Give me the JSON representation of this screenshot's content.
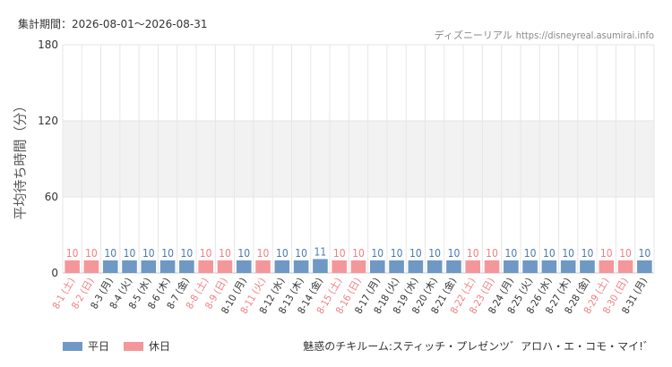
{
  "header": {
    "period_label": "集計期間：2026-08-01～2026-08-31",
    "site_name": "ディズニーリアル",
    "site_url": "https://disneyreal.asumirai.info"
  },
  "colors": {
    "weekday": "#6f98c4",
    "holiday": "#f4979b",
    "weekday_text": "#4a7ab0",
    "holiday_text": "#f07f85",
    "band": "#f2f2f2",
    "grid": "#e6e6e6"
  },
  "legend": {
    "weekday_label": "平日",
    "holiday_label": "休日"
  },
  "footer": {
    "attraction": "魅惑のチキルーム:スティッチ・プレゼンツ゛アロハ・エ・コモ・マイ!゛"
  },
  "chart_data": {
    "type": "bar",
    "ylabel": "平均待ち時間（分）",
    "ylim": [
      0,
      180
    ],
    "yticks": [
      0,
      60,
      120,
      180
    ],
    "shaded_band": [
      60,
      120
    ],
    "grid": true,
    "legend_position": "bottom-left",
    "categories": [
      "8-1 (土)",
      "8-2 (日)",
      "8-3 (月)",
      "8-4 (火)",
      "8-5 (水)",
      "8-6 (木)",
      "8-7 (金)",
      "8-8 (土)",
      "8-9 (日)",
      "8-10 (月)",
      "8-11 (火)",
      "8-12 (水)",
      "8-13 (木)",
      "8-14 (金)",
      "8-15 (土)",
      "8-16 (日)",
      "8-17 (月)",
      "8-18 (火)",
      "8-19 (水)",
      "8-20 (木)",
      "8-21 (金)",
      "8-22 (土)",
      "8-23 (日)",
      "8-24 (月)",
      "8-25 (火)",
      "8-26 (水)",
      "8-27 (木)",
      "8-28 (金)",
      "8-29 (土)",
      "8-30 (日)",
      "8-31 (月)"
    ],
    "values": [
      10,
      10,
      10,
      10,
      10,
      10,
      10,
      10,
      10,
      10,
      10,
      10,
      10,
      11,
      10,
      10,
      10,
      10,
      10,
      10,
      10,
      10,
      10,
      10,
      10,
      10,
      10,
      10,
      10,
      10,
      10
    ],
    "day_type": [
      "holiday",
      "holiday",
      "weekday",
      "weekday",
      "weekday",
      "weekday",
      "weekday",
      "holiday",
      "holiday",
      "weekday",
      "holiday",
      "weekday",
      "weekday",
      "weekday",
      "holiday",
      "holiday",
      "weekday",
      "weekday",
      "weekday",
      "weekday",
      "weekday",
      "holiday",
      "holiday",
      "weekday",
      "weekday",
      "weekday",
      "weekday",
      "weekday",
      "holiday",
      "holiday",
      "weekday"
    ]
  }
}
